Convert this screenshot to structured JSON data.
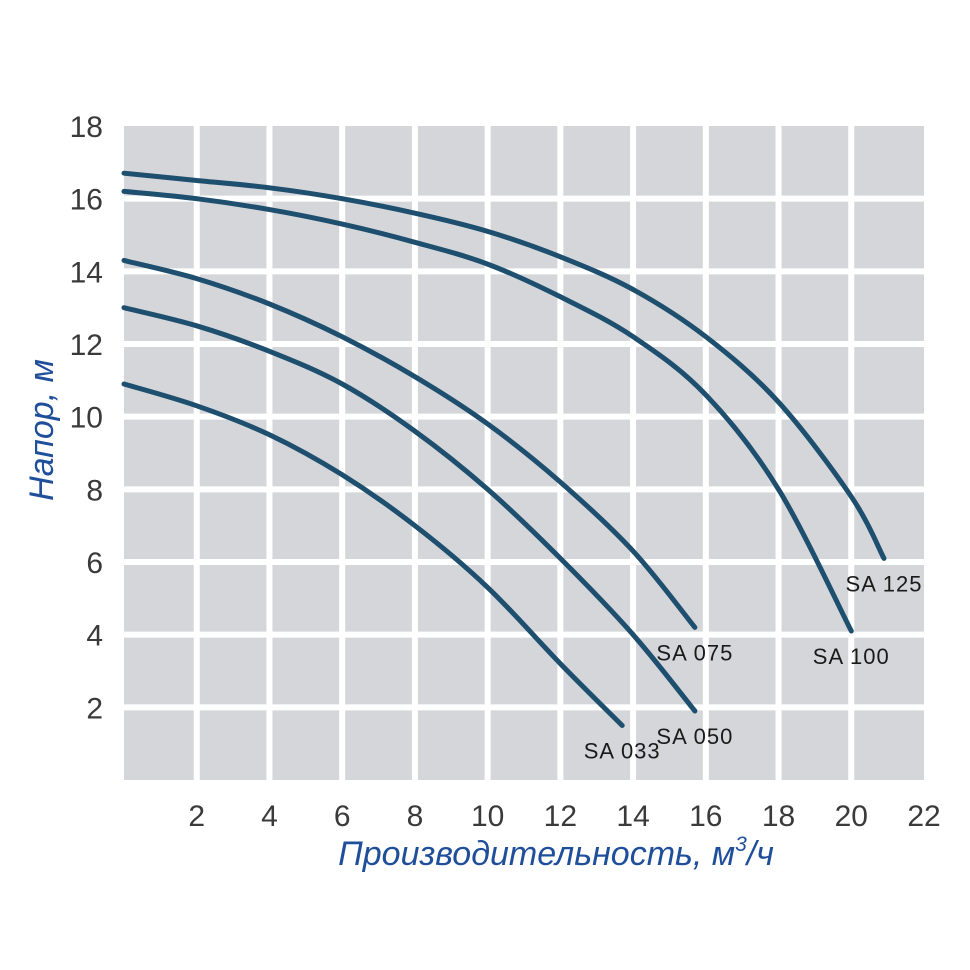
{
  "chart_data": {
    "type": "line",
    "title": "",
    "xlabel": "Производительность, м",
    "xlabel_sup": "3",
    "xlabel_tail": "/ч",
    "ylabel": "Напор, м",
    "xlim": [
      0,
      22
    ],
    "ylim": [
      0,
      18
    ],
    "x_ticks": [
      2,
      4,
      6,
      8,
      10,
      12,
      14,
      16,
      18,
      20,
      22
    ],
    "y_ticks": [
      2,
      4,
      6,
      8,
      10,
      12,
      14,
      16,
      18
    ],
    "grid": true,
    "colors": {
      "plot_bg": "#d5d6da",
      "grid": "#ffffff",
      "line": "#1e4f6e",
      "axis_title": "#1f4e9a"
    },
    "series": [
      {
        "name": "SA 033",
        "x": [
          0,
          2,
          4,
          6,
          8,
          10,
          12,
          13.7
        ],
        "y": [
          10.9,
          10.3,
          9.5,
          8.4,
          7.0,
          5.3,
          3.2,
          1.5
        ]
      },
      {
        "name": "SA 050",
        "x": [
          0,
          2,
          4,
          6,
          8,
          10,
          12,
          14,
          15.7
        ],
        "y": [
          13.0,
          12.5,
          11.8,
          10.9,
          9.6,
          8.0,
          6.1,
          4.0,
          1.9
        ]
      },
      {
        "name": "SA 075",
        "x": [
          0,
          2,
          4,
          6,
          8,
          10,
          12,
          14,
          15.7
        ],
        "y": [
          14.3,
          13.8,
          13.1,
          12.2,
          11.1,
          9.8,
          8.2,
          6.3,
          4.2
        ]
      },
      {
        "name": "SA 100",
        "x": [
          0,
          2,
          4,
          6,
          8,
          10,
          12,
          14,
          16,
          18,
          20
        ],
        "y": [
          16.2,
          16.0,
          15.7,
          15.3,
          14.8,
          14.2,
          13.3,
          12.2,
          10.6,
          8.0,
          4.1
        ]
      },
      {
        "name": "SA 125",
        "x": [
          0,
          2,
          4,
          6,
          8,
          10,
          12,
          14,
          16,
          18,
          20,
          20.9
        ],
        "y": [
          16.7,
          16.5,
          16.3,
          16.0,
          15.6,
          15.1,
          14.4,
          13.5,
          12.2,
          10.4,
          7.8,
          6.1
        ]
      }
    ]
  }
}
